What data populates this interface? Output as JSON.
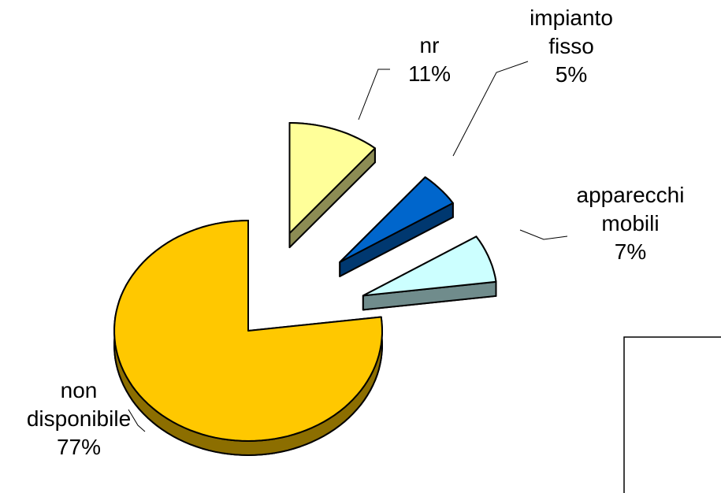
{
  "chart_data": {
    "type": "pie",
    "categories": [
      "nr",
      "impianto fisso",
      "apparecchi mobili",
      "non disponibile"
    ],
    "values": [
      11,
      5,
      7,
      77
    ],
    "value_labels": [
      "11%",
      "5%",
      "7%",
      "77%"
    ],
    "colors": [
      "#FFFF99",
      "#0066CC",
      "#CCFFFF",
      "#FFC800"
    ]
  }
}
